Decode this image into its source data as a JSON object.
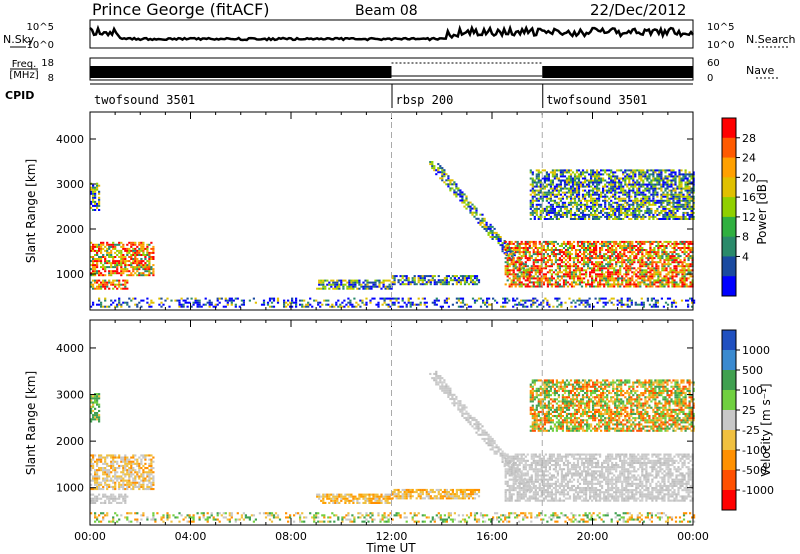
{
  "header": {
    "radar": "Prince George (fitACF)",
    "beam": "Beam 08",
    "date": "22/Dec/2012"
  },
  "top_strips": {
    "nsky": {
      "label": "N.Sky",
      "right_label": "N.Search",
      "ticks": [
        "10^5",
        "10^0"
      ]
    },
    "freq": {
      "label_line1": "Freq.",
      "label_line2": "[MHz]",
      "left_ticks": [
        "18",
        "8"
      ],
      "right_label": "Nave",
      "right_ticks": [
        "60",
        "0"
      ]
    },
    "cpid": {
      "label": "CPID",
      "segments": [
        {
          "name": "twofsound 3501",
          "start_h": 0,
          "end_h": 12
        },
        {
          "name": "rbsp 200",
          "start_h": 12,
          "end_h": 18
        },
        {
          "name": "twofsound 3501",
          "start_h": 18,
          "end_h": 24
        }
      ]
    }
  },
  "chart_data": [
    {
      "type": "heatmap",
      "name": "power",
      "ylabel": "Slant Range [km]",
      "xlim": [
        0,
        24
      ],
      "ylim": [
        200,
        4600
      ],
      "yticks": [
        "1000",
        "2000",
        "3000",
        "4000"
      ],
      "colorbar": {
        "label": "Power [dB]",
        "ticks": [
          "28",
          "24",
          "20",
          "16",
          "12",
          "8",
          "4"
        ],
        "colors": [
          "#ff0000",
          "#ff5a00",
          "#ffa000",
          "#e0c000",
          "#90d000",
          "#30b040",
          "#2a8a6a",
          "#1a4aa0",
          "#0000ff"
        ]
      },
      "regions": [
        {
          "t": [
            0.0,
            0.4
          ],
          "r": [
            2400,
            3000
          ],
          "level": "mid"
        },
        {
          "t": [
            0.0,
            2.5
          ],
          "r": [
            950,
            1700
          ],
          "level": "high"
        },
        {
          "t": [
            0.0,
            1.5
          ],
          "r": [
            650,
            850
          ],
          "level": "high"
        },
        {
          "t": [
            0.0,
            24.0
          ],
          "r": [
            250,
            450
          ],
          "level": "low"
        },
        {
          "t": [
            9.0,
            12.0
          ],
          "r": [
            650,
            850
          ],
          "level": "mid"
        },
        {
          "t": [
            12.0,
            15.5
          ],
          "r": [
            750,
            950
          ],
          "level": "mid"
        },
        {
          "t": [
            13.5,
            17.5
          ],
          "r": [
            900,
            3500
          ],
          "level": "mid",
          "shape": "diagonal"
        },
        {
          "t": [
            16.5,
            24.0
          ],
          "r": [
            700,
            1700
          ],
          "level": "high"
        },
        {
          "t": [
            17.5,
            24.0
          ],
          "r": [
            2200,
            3300
          ],
          "level": "mid"
        }
      ]
    },
    {
      "type": "heatmap",
      "name": "velocity",
      "ylabel": "Slant Range [km]",
      "xlabel": "Time UT",
      "xlim": [
        0,
        24
      ],
      "ylim": [
        200,
        4600
      ],
      "yticks": [
        "1000",
        "2000",
        "3000",
        "4000"
      ],
      "xticks": [
        "00:00",
        "04:00",
        "08:00",
        "12:00",
        "16:00",
        "20:00",
        "00:00"
      ],
      "colorbar": {
        "label": "Velocity [m s⁻¹]",
        "ticks": [
          "1000",
          "500",
          "100",
          "25",
          "-25",
          "-100",
          "-500",
          "-1000"
        ],
        "colors": [
          "#2050c0",
          "#3a8ad0",
          "#40a050",
          "#70d040",
          "#c8c8c8",
          "#f0c040",
          "#ff9000",
          "#ff5000",
          "#ff0000"
        ]
      },
      "regions": [
        {
          "t": [
            0.0,
            0.4
          ],
          "r": [
            2400,
            3000
          ],
          "level": "green"
        },
        {
          "t": [
            0.0,
            2.5
          ],
          "r": [
            950,
            1700
          ],
          "level": "grey_orange"
        },
        {
          "t": [
            0.0,
            1.5
          ],
          "r": [
            650,
            850
          ],
          "level": "grey"
        },
        {
          "t": [
            0.0,
            24.0
          ],
          "r": [
            250,
            450
          ],
          "level": "mixed"
        },
        {
          "t": [
            9.0,
            12.0
          ],
          "r": [
            650,
            850
          ],
          "level": "orange"
        },
        {
          "t": [
            12.0,
            15.5
          ],
          "r": [
            750,
            950
          ],
          "level": "orange"
        },
        {
          "t": [
            13.5,
            17.5
          ],
          "r": [
            900,
            3500
          ],
          "level": "grey",
          "shape": "diagonal"
        },
        {
          "t": [
            16.5,
            24.0
          ],
          "r": [
            700,
            1700
          ],
          "level": "grey"
        },
        {
          "t": [
            17.5,
            24.0
          ],
          "r": [
            2200,
            3300
          ],
          "level": "orange_green"
        }
      ]
    }
  ]
}
